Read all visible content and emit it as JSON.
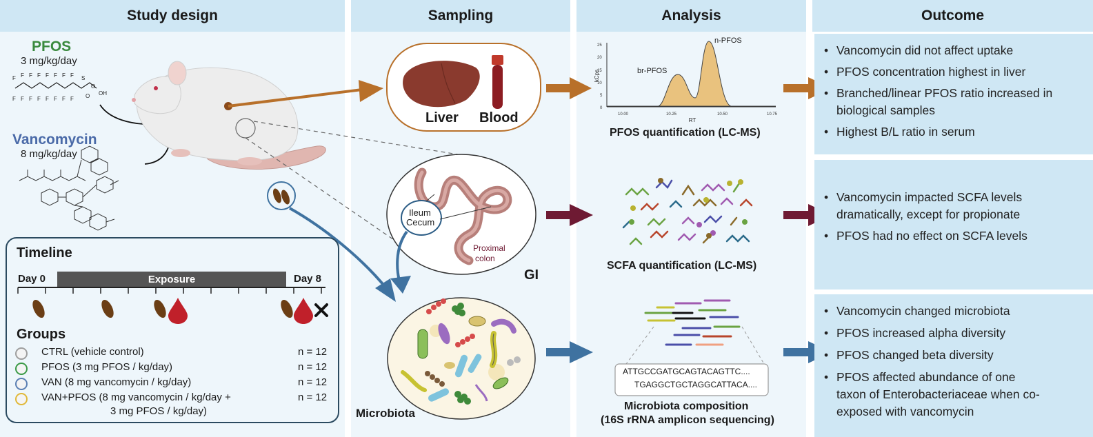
{
  "columns": {
    "study_design": "Study design",
    "sampling": "Sampling",
    "analysis": "Analysis",
    "outcome": "Outcome"
  },
  "exposure": {
    "pfos_name": "PFOS",
    "pfos_dose": "3 mg/kg/day",
    "vanco_name": "Vancomycin",
    "vanco_dose": "8 mg/kg/day"
  },
  "timeline": {
    "title": "Timeline",
    "day_start": "Day 0",
    "bar_label": "Exposure",
    "day_end": "Day 8"
  },
  "groups": {
    "title": "Groups",
    "rows": [
      {
        "label": "CTRL (vehicle control)",
        "n": "n = 12",
        "color": "#9e9e9e"
      },
      {
        "label": "PFOS (3 mg PFOS / kg/day)",
        "n": "n = 12",
        "color": "#3a9a46"
      },
      {
        "label": "VAN (8 mg vancomycin / kg/day)",
        "n": "n = 12",
        "color": "#5b7fb3"
      },
      {
        "label": "VAN+PFOS (8 mg vancomycin / kg/day +",
        "label2": "3 mg PFOS / kg/day)",
        "n": "n = 12",
        "color": "#e0b838"
      }
    ]
  },
  "sampling": {
    "liver": "Liver",
    "blood": "Blood",
    "ileum": "Ileum",
    "cecum": "Cecum",
    "proximal": "Proximal",
    "colon": "colon",
    "gi": "GI",
    "microbiota": "Microbiota"
  },
  "analysis": {
    "chromatogram": {
      "ylabel": "kCps",
      "xlabel": "RT",
      "yticks": [
        "0",
        "5",
        "10",
        "15",
        "20",
        "25"
      ],
      "xticks": [
        "10.00",
        "10.25",
        "10.50",
        "10.75"
      ],
      "peak_branched": "br-PFOS",
      "peak_linear": "n-PFOS"
    },
    "pfos_caption": "PFOS quantification (LC-MS)",
    "scfa_caption": "SCFA quantification (LC-MS)",
    "seq_line1": "ATTGCCGATGCAGTACAGTTC....",
    "seq_line2": "TGAGGCTGCTAGGCATTACA....",
    "micro_caption1": "Microbiota composition",
    "micro_caption2": "(16S rRNA amplicon sequencing)"
  },
  "outcome": {
    "box1": [
      "Vancomycin did not affect uptake",
      "PFOS concentration highest in liver",
      "Branched/linear PFOS ratio increased in biological samples",
      "Highest B/L ratio in serum"
    ],
    "box2": [
      "Vancomycin impacted SCFA levels dramatically, except for propionate",
      "PFOS had no effect on SCFA levels"
    ],
    "box3": [
      "Vancomycin changed microbiota",
      "PFOS increased alpha diversity",
      "PFOS changed beta diversity",
      "PFOS affected abundance of one taxon of Enterobacteriaceae when co-exposed with vancomycin"
    ]
  },
  "colors": {
    "pfos_green": "#3a8a3e",
    "vanco_blue": "#4a6aa8",
    "arrow_orange": "#b8702a",
    "arrow_maroon": "#6e1a33",
    "arrow_blue": "#3f72a0",
    "column_bg": "#eef6fb",
    "header_bg": "#cfe7f4"
  }
}
